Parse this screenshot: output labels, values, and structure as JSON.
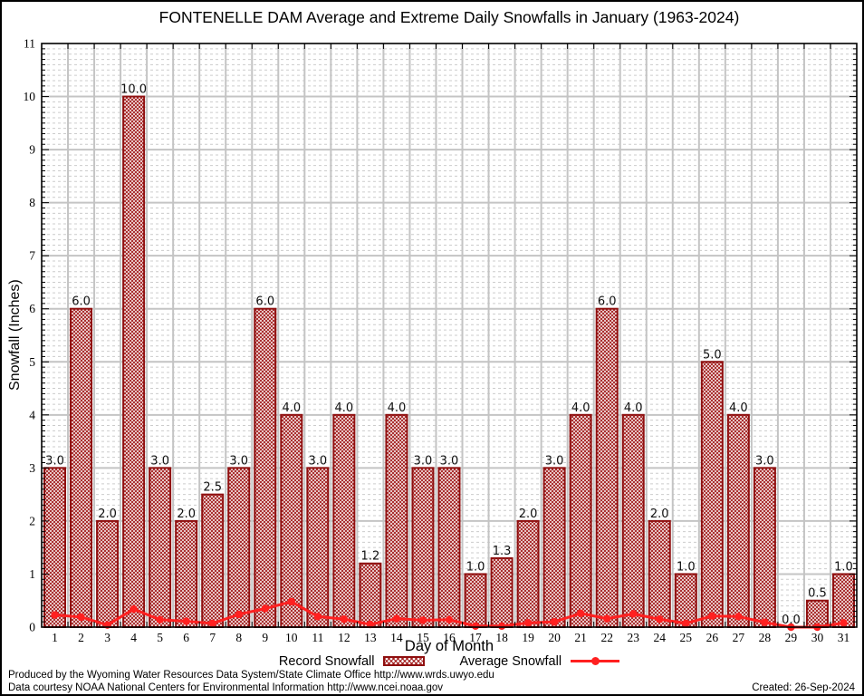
{
  "title": "FONTENELLE DAM Average and Extreme Daily Snowfalls in January (1963-2024)",
  "legend": {
    "record_label": "Record Snowfall",
    "average_label": "Average Snowfall"
  },
  "footer": {
    "line1": "Produced by the Wyoming Water Resources Data System/State Climate Office http://www.wrds.uwyo.edu",
    "line2": "Data courtesy NOAA National Centers for Environmental Information http://www.ncei.noaa.gov",
    "created": "Created: 26-Sep-2024"
  },
  "colors": {
    "bar_border": "#8f0f0f",
    "bar_hatch": "#a32020",
    "avg_line": "#ff2020",
    "grid_major": "#c4c4c4",
    "grid_minor": "#cccccc",
    "axis": "#000000",
    "value_label": "#111111"
  },
  "chart_data": {
    "type": "bar",
    "title": "FONTENELLE DAM Average and Extreme Daily Snowfalls in January (1963-2024)",
    "xlabel": "Day of Month",
    "ylabel": "Snowfall (Inches)",
    "ylim": [
      0,
      11
    ],
    "y_major_step": 1,
    "y_minor_step": 0.1,
    "grid": true,
    "legend_position": "bottom",
    "categories": [
      "1",
      "2",
      "3",
      "4",
      "5",
      "6",
      "7",
      "8",
      "9",
      "10",
      "11",
      "12",
      "13",
      "14",
      "15",
      "16",
      "17",
      "18",
      "19",
      "20",
      "21",
      "22",
      "23",
      "24",
      "25",
      "26",
      "27",
      "28",
      "29",
      "30",
      "31"
    ],
    "series": [
      {
        "name": "Record Snowfall",
        "type": "bar",
        "values": [
          3.0,
          6.0,
          2.0,
          10.0,
          3.0,
          2.0,
          2.5,
          3.0,
          6.0,
          4.0,
          3.0,
          4.0,
          1.2,
          4.0,
          3.0,
          3.0,
          1.0,
          1.3,
          2.0,
          3.0,
          4.0,
          6.0,
          4.0,
          2.0,
          1.0,
          5.0,
          4.0,
          3.0,
          0.0,
          0.5,
          1.0
        ]
      },
      {
        "name": "Average Snowfall",
        "type": "line",
        "values": [
          0.23,
          0.19,
          0.04,
          0.34,
          0.14,
          0.11,
          0.07,
          0.24,
          0.35,
          0.48,
          0.2,
          0.15,
          0.05,
          0.16,
          0.13,
          0.14,
          0.02,
          0.02,
          0.08,
          0.1,
          0.26,
          0.16,
          0.25,
          0.15,
          0.07,
          0.21,
          0.2,
          0.09,
          0.0,
          0.0,
          0.08
        ]
      }
    ]
  }
}
